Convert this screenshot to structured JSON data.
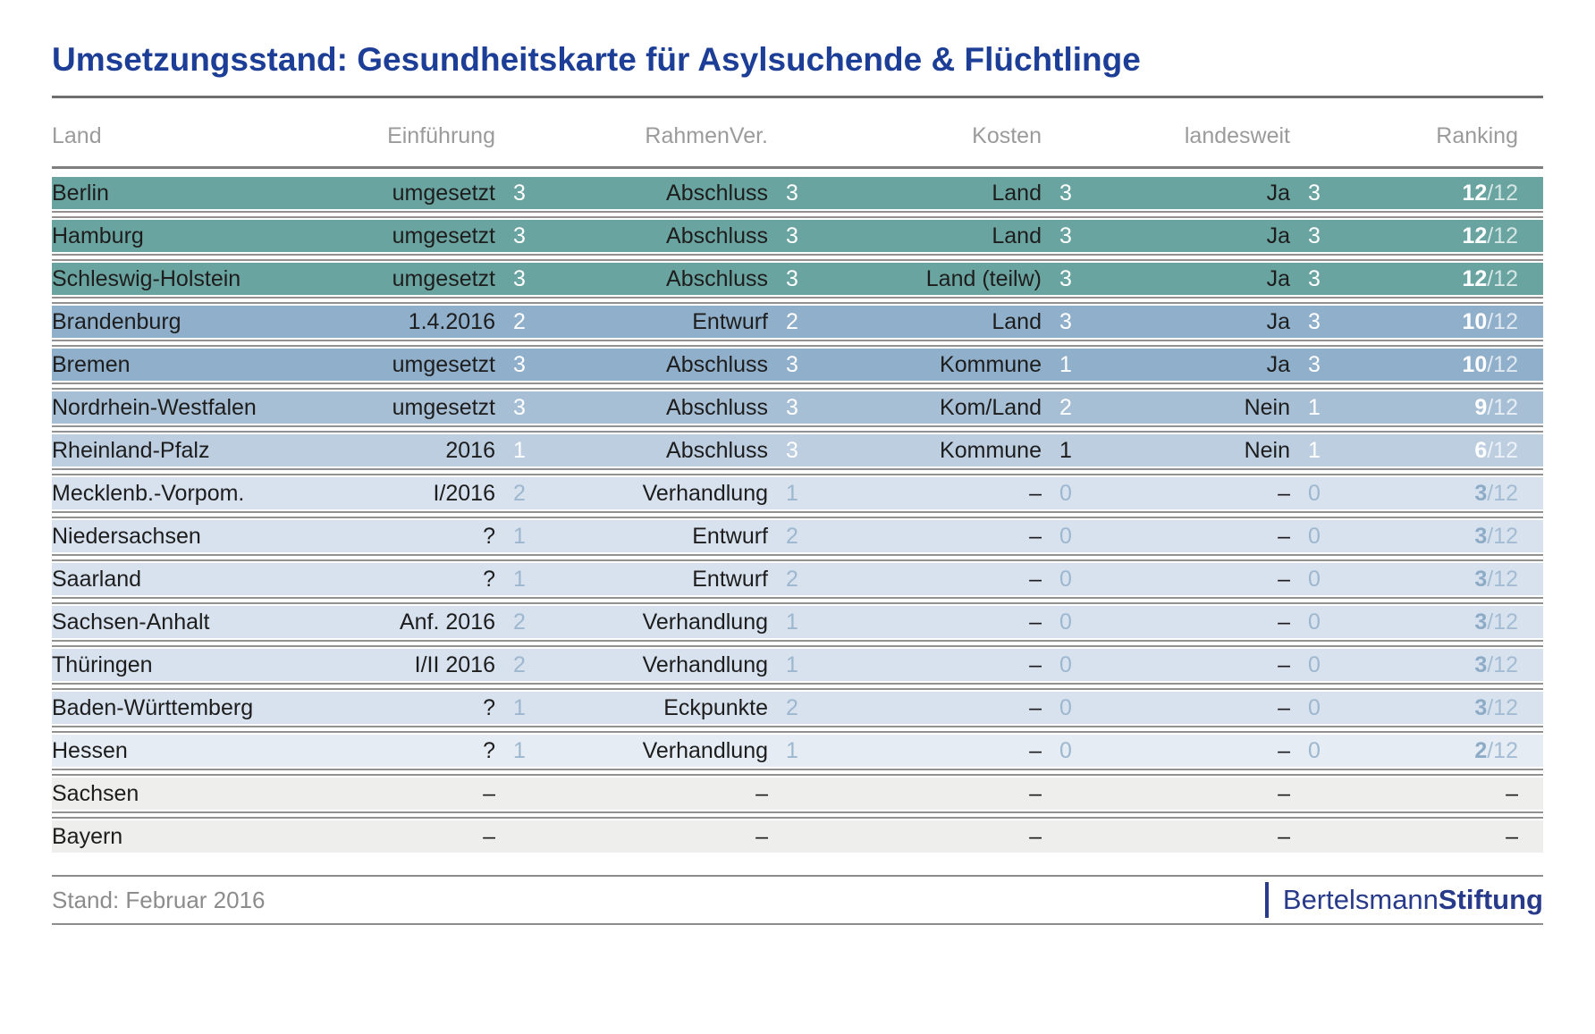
{
  "title": "Umsetzungsstand: Gesundheitskarte für Asylsuchende & Flüchtlinge",
  "header": {
    "columns": [
      "Land",
      "Einführung",
      "RahmenVer.",
      "Kosten",
      "landesweit",
      "Ranking"
    ]
  },
  "chart_data": {
    "type": "table",
    "title": "Umsetzungsstand: Gesundheitskarte für Asylsuchende & Flüchtlinge",
    "columns": [
      "Land",
      "Einführung",
      "RahmenVer.",
      "Kosten",
      "landesweit",
      "Ranking"
    ],
    "score_scale": "0-3 pro Kategorie, Ranking max 12",
    "rows": [
      {
        "land": "Berlin",
        "tier": "t1",
        "cells": [
          {
            "v": "umgesetzt",
            "s": "3"
          },
          {
            "v": "Abschluss",
            "s": "3"
          },
          {
            "v": "Land",
            "s": "3"
          },
          {
            "v": "Ja",
            "s": "3"
          }
        ],
        "ranking": {
          "main": "12",
          "suffix": "/12"
        }
      },
      {
        "land": "Hamburg",
        "tier": "t1",
        "cells": [
          {
            "v": "umgesetzt",
            "s": "3"
          },
          {
            "v": "Abschluss",
            "s": "3"
          },
          {
            "v": "Land",
            "s": "3"
          },
          {
            "v": "Ja",
            "s": "3"
          }
        ],
        "ranking": {
          "main": "12",
          "suffix": "/12"
        }
      },
      {
        "land": "Schleswig-Holstein",
        "tier": "t1",
        "cells": [
          {
            "v": "umgesetzt",
            "s": "3"
          },
          {
            "v": "Abschluss",
            "s": "3"
          },
          {
            "v": "Land (teilw)",
            "s": "3"
          },
          {
            "v": "Ja",
            "s": "3"
          }
        ],
        "ranking": {
          "main": "12",
          "suffix": "/12"
        }
      },
      {
        "land": "Brandenburg",
        "tier": "t2",
        "cells": [
          {
            "v": "1.4.2016",
            "s": "2"
          },
          {
            "v": "Entwurf",
            "s": "2"
          },
          {
            "v": "Land",
            "s": "3"
          },
          {
            "v": "Ja",
            "s": "3"
          }
        ],
        "ranking": {
          "main": "10",
          "suffix": "/12"
        }
      },
      {
        "land": "Bremen",
        "tier": "t2",
        "cells": [
          {
            "v": "umgesetzt",
            "s": "3"
          },
          {
            "v": "Abschluss",
            "s": "3"
          },
          {
            "v": "Kommune",
            "s": "1"
          },
          {
            "v": "Ja",
            "s": "3"
          }
        ],
        "ranking": {
          "main": "10",
          "suffix": "/12"
        }
      },
      {
        "land": "Nordrhein-Westfalen",
        "tier": "t3",
        "cells": [
          {
            "v": "umgesetzt",
            "s": "3"
          },
          {
            "v": "Abschluss",
            "s": "3"
          },
          {
            "v": "Kom/Land",
            "s": "2"
          },
          {
            "v": "Nein",
            "s": "1"
          }
        ],
        "ranking": {
          "main": "9",
          "suffix": "/12"
        }
      },
      {
        "land": "Rheinland-Pfalz",
        "tier": "t4",
        "cells": [
          {
            "v": "2016",
            "s": "1"
          },
          {
            "v": "Abschluss",
            "s": "3"
          },
          {
            "v": "Kommune",
            "s": "1",
            "s_dark": true
          },
          {
            "v": "Nein",
            "s": "1"
          }
        ],
        "ranking": {
          "main": "6",
          "suffix": "/12"
        }
      },
      {
        "land": "Mecklenb.-Vorpom.",
        "tier": "t5",
        "cells": [
          {
            "v": "I/2016",
            "s": "2"
          },
          {
            "v": "Verhandlung",
            "s": "1"
          },
          {
            "v": "–",
            "s": "0"
          },
          {
            "v": "–",
            "s": "0"
          }
        ],
        "ranking": {
          "main": "3",
          "suffix": "/12"
        }
      },
      {
        "land": "Niedersachsen",
        "tier": "t5",
        "cells": [
          {
            "v": "?",
            "s": "1"
          },
          {
            "v": "Entwurf",
            "s": "2"
          },
          {
            "v": "–",
            "s": "0"
          },
          {
            "v": "–",
            "s": "0"
          }
        ],
        "ranking": {
          "main": "3",
          "suffix": "/12"
        }
      },
      {
        "land": "Saarland",
        "tier": "t5",
        "cells": [
          {
            "v": "?",
            "s": "1"
          },
          {
            "v": "Entwurf",
            "s": "2"
          },
          {
            "v": "–",
            "s": "0"
          },
          {
            "v": "–",
            "s": "0"
          }
        ],
        "ranking": {
          "main": "3",
          "suffix": "/12"
        }
      },
      {
        "land": "Sachsen-Anhalt",
        "tier": "t5",
        "cells": [
          {
            "v": "Anf. 2016",
            "s": "2"
          },
          {
            "v": "Verhandlung",
            "s": "1"
          },
          {
            "v": "–",
            "s": "0"
          },
          {
            "v": "–",
            "s": "0"
          }
        ],
        "ranking": {
          "main": "3",
          "suffix": "/12"
        }
      },
      {
        "land": "Thüringen",
        "tier": "t5",
        "cells": [
          {
            "v": "I/II 2016",
            "s": "2"
          },
          {
            "v": "Verhandlung",
            "s": "1"
          },
          {
            "v": "–",
            "s": "0"
          },
          {
            "v": "–",
            "s": "0"
          }
        ],
        "ranking": {
          "main": "3",
          "suffix": "/12"
        }
      },
      {
        "land": "Baden-Württemberg",
        "tier": "t5",
        "cells": [
          {
            "v": "?",
            "s": "1"
          },
          {
            "v": "Eckpunkte",
            "s": "2"
          },
          {
            "v": "–",
            "s": "0"
          },
          {
            "v": "–",
            "s": "0"
          }
        ],
        "ranking": {
          "main": "3",
          "suffix": "/12"
        }
      },
      {
        "land": "Hessen",
        "tier": "t6",
        "cells": [
          {
            "v": "?",
            "s": "1"
          },
          {
            "v": "Verhandlung",
            "s": "1"
          },
          {
            "v": "–",
            "s": "0"
          },
          {
            "v": "–",
            "s": "0"
          }
        ],
        "ranking": {
          "main": "2",
          "suffix": "/12"
        }
      },
      {
        "land": "Sachsen",
        "tier": "t7",
        "cells": [
          {
            "v": "–"
          },
          {
            "v": "–"
          },
          {
            "v": "–"
          },
          {
            "v": "–"
          }
        ],
        "ranking": {
          "main": "–",
          "suffix": ""
        }
      },
      {
        "land": "Bayern",
        "tier": "t7",
        "cells": [
          {
            "v": "–"
          },
          {
            "v": "–"
          },
          {
            "v": "–"
          },
          {
            "v": "–"
          }
        ],
        "ranking": {
          "main": "–",
          "suffix": ""
        }
      }
    ]
  },
  "footer": {
    "stand": "Stand: Februar 2016",
    "logo_regular": "Bertelsmann",
    "logo_bold": "Stiftung"
  },
  "colors": {
    "title_blue": "#1d3e96",
    "logo_blue": "#283a8a",
    "header_gray": "#9b9b9b",
    "row_tiers": {
      "t1": "#6aa4a0",
      "t2": "#8fafca",
      "t3": "#a7bfd5",
      "t4": "#bccee0",
      "t5": "#d7e2ee",
      "t6": "#e5ecf4",
      "t7": "#eeefed"
    },
    "score_on_dark": "#ffffff",
    "score_on_light": "#9db7cf",
    "score_dark": "#1d1d1d"
  }
}
